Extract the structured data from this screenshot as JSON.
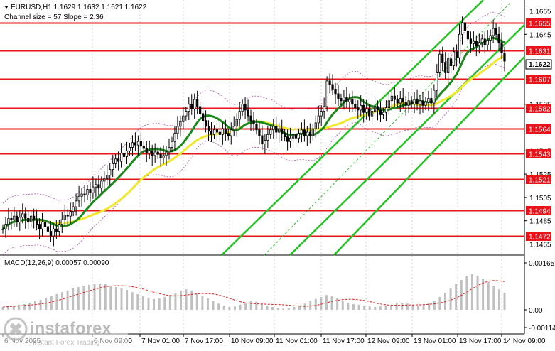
{
  "header": {
    "line1": "EURUSD,H1  1.1629 1.1632 1.1621 1.1622",
    "line2": "Channel size = 57 Slope = 2.36"
  },
  "current_price": "1.1622",
  "price_ticks": [
    "1.1665",
    "1.1645",
    "1.1585",
    "1.1545",
    "1.1525",
    "1.1505",
    "1.1485",
    "1.1465"
  ],
  "levels": [
    {
      "label": "1.1655",
      "value": 1.1655
    },
    {
      "label": "1.1631",
      "value": 1.1631
    },
    {
      "label": "1.1607",
      "value": 1.1607
    },
    {
      "label": "1.1582",
      "value": 1.1582
    },
    {
      "label": "1.1564",
      "value": 1.1564
    },
    {
      "label": "1.1543",
      "value": 1.1543
    },
    {
      "label": "1.1521",
      "value": 1.1521
    },
    {
      "label": "1.1494",
      "value": 1.1494
    },
    {
      "label": "1.1472",
      "value": 1.1472
    }
  ],
  "macd": {
    "label": "MACD(12,26,9) 0.00057 0.00090",
    "ticks": [
      "0.00165",
      "0.00",
      "-0.00114"
    ]
  },
  "time_axis": [
    "6 Nov 2025",
    "6 Nov 09:00",
    "7 Nov 01:00",
    "7 Nov 17:00",
    "10 Nov 09:00",
    "11 Nov 01:00",
    "11 Nov 17:00",
    "12 Nov 09:00",
    "13 Nov 01:00",
    "13 Nov 17:00",
    "14 Nov 09:00"
  ],
  "watermark": {
    "brand": "instaforex",
    "tagline": "Instant Forex Trading"
  },
  "colors": {
    "level_line": "#e8141a",
    "channel": "#22c322",
    "ma_fast": "#1a8a1a",
    "ma_slow": "#f0e82a",
    "candles": "#000000",
    "bollinger": "#a040a0",
    "macd_hist": "#c0c0c0",
    "macd_signal": "#e02020"
  },
  "chart_data": {
    "type": "candlestick",
    "symbol": "EURUSD",
    "timeframe": "H1",
    "ylim": [
      1.1458,
      1.1672
    ],
    "close": [
      1.1478,
      1.1482,
      1.1487,
      1.1486,
      1.1489,
      1.1484,
      1.1488,
      1.1491,
      1.1487,
      1.1484,
      1.1489,
      1.1486,
      1.1482,
      1.1478,
      1.1484,
      1.148,
      1.1476,
      1.1472,
      1.1478,
      1.1476,
      1.1482,
      1.1486,
      1.149,
      1.1489,
      1.1493,
      1.1497,
      1.1502,
      1.1506,
      1.1508,
      1.1507,
      1.1512,
      1.1509,
      1.1514,
      1.1516,
      1.1513,
      1.1519,
      1.1521,
      1.1524,
      1.1529,
      1.1534,
      1.1538,
      1.1536,
      1.1543,
      1.154,
      1.1545,
      1.1548,
      1.1552,
      1.155,
      1.1553,
      1.1549,
      1.1547,
      1.1543,
      1.1545,
      1.1541,
      1.1544,
      1.1542,
      1.1539,
      1.1541,
      1.1544,
      1.1548,
      1.1553,
      1.156,
      1.1566,
      1.157,
      1.1575,
      1.1579,
      1.1585,
      1.1581,
      1.1589,
      1.1583,
      1.1577,
      1.1571,
      1.1566,
      1.1562,
      1.1559,
      1.1563,
      1.1561,
      1.1559,
      1.1564,
      1.156,
      1.1558,
      1.1563,
      1.1566,
      1.1572,
      1.1579,
      1.1585,
      1.158,
      1.1575,
      1.1571,
      1.1568,
      1.1563,
      1.1558,
      1.1551,
      1.1554,
      1.1559,
      1.1563,
      1.1566,
      1.1561,
      1.1564,
      1.156,
      1.1557,
      1.1553,
      1.1556,
      1.1559,
      1.1556,
      1.156,
      1.1563,
      1.1558,
      1.1561,
      1.1558,
      1.1564,
      1.1569,
      1.1575,
      1.1579,
      1.1583,
      1.1605,
      1.1602,
      1.1598,
      1.1594,
      1.159,
      1.1588,
      1.1591,
      1.1587,
      1.1589,
      1.1585,
      1.1582,
      1.158,
      1.1584,
      1.1578,
      1.1581,
      1.1575,
      1.1579,
      1.1583,
      1.158,
      1.1576,
      1.1578,
      1.1582,
      1.1588,
      1.1592,
      1.1589,
      1.1586,
      1.159,
      1.1587,
      1.1584,
      1.1588,
      1.1585,
      1.1589,
      1.1585,
      1.1588,
      1.1584,
      1.1587,
      1.159,
      1.1586,
      1.1597,
      1.1612,
      1.1628,
      1.1621,
      1.1612,
      1.1624,
      1.1618,
      1.163,
      1.1625,
      1.1645,
      1.1655,
      1.1648,
      1.1641,
      1.1637,
      1.1639,
      1.1635,
      1.1638,
      1.1641,
      1.1636,
      1.164,
      1.1644,
      1.165,
      1.1645,
      1.1638,
      1.1629,
      1.1622
    ],
    "macd_hist": [
      0.0001,
      0.00012,
      0.00015,
      0.00018,
      0.0002,
      0.00025,
      0.0003,
      0.00035,
      0.00042,
      0.00048,
      0.00055,
      0.00062,
      0.00068,
      0.00075,
      0.0008,
      0.00085,
      0.00088,
      0.0009,
      0.00092,
      0.0009,
      0.00085,
      0.0008,
      0.00075,
      0.0007,
      0.00062,
      0.00055,
      0.00048,
      0.00042,
      0.00038,
      0.0004,
      0.00045,
      0.00052,
      0.0006,
      0.00068,
      0.00072,
      0.00068,
      0.0006,
      0.0005,
      0.0004,
      0.0003,
      0.00022,
      0.00015,
      0.0001,
      0.00012,
      0.00018,
      0.00025,
      0.0003,
      0.00028,
      0.00022,
      0.00015,
      0.0001,
      6e-05,
      4e-05,
      6e-05,
      0.0001,
      0.00016,
      0.00022,
      0.0003,
      0.00038,
      0.00045,
      0.00052,
      0.00048,
      0.0004,
      0.00032,
      0.00025,
      0.0002,
      0.00018,
      0.00015,
      0.00012,
      0.0001,
      0.00012,
      0.00015,
      0.00018,
      0.00022,
      0.00025,
      0.00022,
      0.00018,
      0.00015,
      0.00018,
      0.00022,
      0.0003,
      0.00045,
      0.0006,
      0.00075,
      0.0009,
      0.00105,
      0.00118,
      0.00125,
      0.0012,
      0.0011,
      0.00098,
      0.00085,
      0.00072,
      0.0006
    ]
  }
}
